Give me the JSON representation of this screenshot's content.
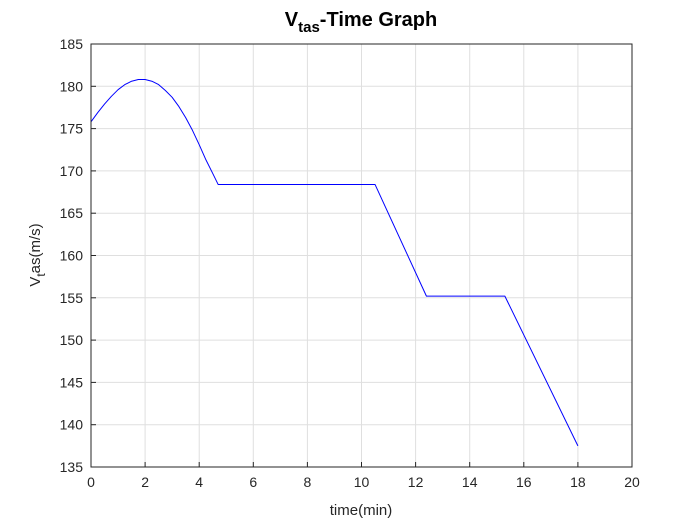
{
  "chart_data": {
    "type": "line",
    "title_main": "V",
    "title_sub": "tas",
    "title_rest": "-Time Graph",
    "xlabel": "time(min)",
    "ylabel_main": "V",
    "ylabel_sub": "t",
    "ylabel_rest": "as(m/s)",
    "xlim": [
      0,
      20
    ],
    "ylim": [
      135,
      185
    ],
    "xticks": [
      0,
      2,
      4,
      6,
      8,
      10,
      12,
      14,
      16,
      18,
      20
    ],
    "yticks": [
      135,
      140,
      145,
      150,
      155,
      160,
      165,
      170,
      175,
      180,
      185
    ],
    "grid": true,
    "line_color": "#0000ff",
    "series": [
      {
        "x": [
          0,
          0.25,
          0.5,
          0.75,
          1.0,
          1.25,
          1.5,
          1.75,
          2.0,
          2.25,
          2.5,
          2.75,
          3.0,
          3.25,
          3.5,
          3.75,
          4.0,
          4.25,
          4.5,
          4.7,
          10.5,
          12.4,
          15.3,
          18.0
        ],
        "y": [
          175.8,
          176.9,
          177.9,
          178.8,
          179.6,
          180.2,
          180.6,
          180.8,
          180.8,
          180.6,
          180.2,
          179.5,
          178.7,
          177.6,
          176.3,
          174.8,
          173.1,
          171.3,
          169.7,
          168.4,
          168.4,
          155.2,
          155.2,
          137.5
        ]
      }
    ]
  }
}
